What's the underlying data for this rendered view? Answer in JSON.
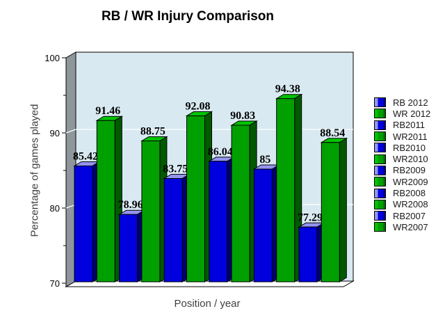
{
  "chart_data": {
    "type": "bar",
    "title": "RB / WR Injury Comparison",
    "xlabel": "Position / year",
    "ylabel": "Percentage of games played",
    "ylim": [
      70,
      100
    ],
    "y_major_ticks": [
      100,
      90,
      80,
      70
    ],
    "y_minor_ticks": [
      95,
      85,
      75
    ],
    "gridlines_at": [
      90,
      80
    ],
    "grid": "on",
    "legend_position": "right",
    "series": [
      {
        "name": "RB 2012",
        "value": 85.42,
        "color_key": "blue"
      },
      {
        "name": "WR 2012",
        "value": 91.46,
        "color_key": "green"
      },
      {
        "name": "RB2011",
        "value": 78.96,
        "color_key": "blue"
      },
      {
        "name": "WR2011",
        "value": 88.75,
        "color_key": "green"
      },
      {
        "name": "RB2010",
        "value": 83.75,
        "color_key": "blue"
      },
      {
        "name": "WR2010",
        "value": 92.08,
        "color_key": "green"
      },
      {
        "name": "RB2009",
        "value": 86.04,
        "color_key": "blue"
      },
      {
        "name": "WR2009",
        "value": 90.83,
        "color_key": "green"
      },
      {
        "name": "RB2008",
        "value": 85,
        "color_key": "blue"
      },
      {
        "name": "WR2008",
        "value": 94.38,
        "color_key": "green"
      },
      {
        "name": "RB2007",
        "value": 77.29,
        "color_key": "blue"
      },
      {
        "name": "WR2007",
        "value": 88.54,
        "color_key": "green"
      }
    ],
    "colors": {
      "blue": {
        "front": "#0000DF",
        "top": "#9494F0",
        "side": "#000070"
      },
      "green": {
        "front": "#00A000",
        "top": "#00C400",
        "side": "#005A00"
      },
      "plot_background": "#D8E9F1",
      "left_wall": "#8F979C",
      "floor": "#FFFFFF",
      "gridline": "#FFFFFF",
      "outline": "#000000",
      "value_label": "#000000"
    }
  }
}
